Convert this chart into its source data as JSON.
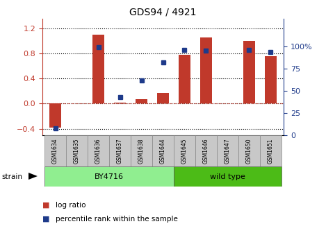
{
  "title": "GDS94 / 4921",
  "samples": [
    "GSM1634",
    "GSM1635",
    "GSM1636",
    "GSM1637",
    "GSM1638",
    "GSM1644",
    "GSM1645",
    "GSM1646",
    "GSM1647",
    "GSM1650",
    "GSM1651"
  ],
  "log_ratio": [
    -0.38,
    0.0,
    1.1,
    0.02,
    0.07,
    0.17,
    0.78,
    1.05,
    0.0,
    1.0,
    0.75
  ],
  "percentile_rank": [
    8,
    null,
    99,
    43,
    62,
    82,
    96,
    95,
    null,
    96,
    94
  ],
  "groups": [
    {
      "label": "BY4716",
      "start": 0,
      "end": 5,
      "color": "#90EE90"
    },
    {
      "label": "wild type",
      "start": 6,
      "end": 10,
      "color": "#4CBB17"
    }
  ],
  "bar_color": "#C0392B",
  "dot_color": "#1E3A8A",
  "zero_line_color": "#C0392B",
  "grid_color": "#000000",
  "ylim_left": [
    -0.5,
    1.35
  ],
  "ylim_right": [
    0,
    131.25
  ],
  "yticks_left": [
    -0.4,
    0.0,
    0.4,
    0.8,
    1.2
  ],
  "yticks_right": [
    0,
    25,
    50,
    75,
    100
  ],
  "strain_label": "strain",
  "legend_log_ratio": "log ratio",
  "legend_percentile": "percentile rank within the sample",
  "background_color": "#ffffff",
  "sample_box_color": "#C8C8C8",
  "by4716_color": "#90EE90",
  "wildtype_color": "#4CBB17"
}
